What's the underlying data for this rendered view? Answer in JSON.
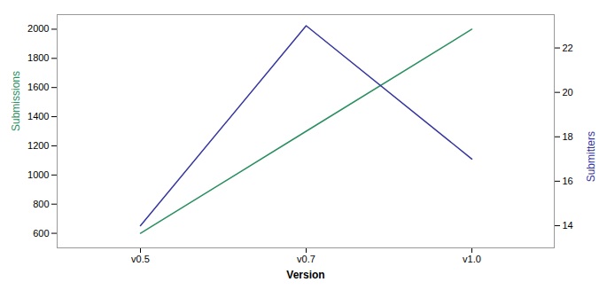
{
  "chart_data": {
    "type": "line",
    "xlabel": "Version",
    "ylabel": "Submissions",
    "y2label": "Submitters",
    "categories": [
      "v0.5",
      "v0.7",
      "v1.0"
    ],
    "series": [
      {
        "name": "Submissions",
        "color": "#2a9060",
        "values": [
          600,
          1300,
          2000
        ]
      },
      {
        "name": "Submitters",
        "color": "#3535a0",
        "values": [
          14,
          23,
          17
        ],
        "axis": "y2"
      }
    ],
    "ylim": [
      500,
      2100
    ],
    "yticks": [
      600,
      800,
      1000,
      1200,
      1400,
      1600,
      1800,
      2000
    ],
    "y2lim": [
      13,
      23.5
    ],
    "y2ticks": [
      14,
      16,
      18,
      20,
      22
    ],
    "grid": false
  }
}
